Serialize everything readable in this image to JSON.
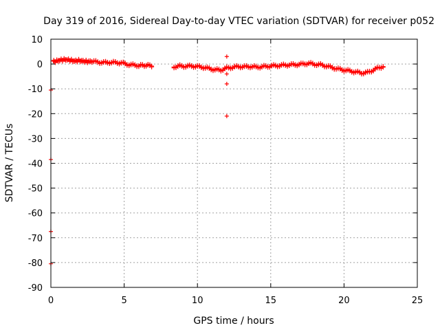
{
  "chart_data": {
    "type": "scatter",
    "title": "Day 319 of 2016, Sidereal Day-to-day VTEC variation (SDTVAR) for receiver p052",
    "xlabel": "GPS time / hours",
    "ylabel": "SDTVAR / TECUs",
    "xlim": [
      0,
      25
    ],
    "ylim": [
      -90,
      10
    ],
    "xticks": [
      0,
      5,
      10,
      15,
      20,
      25
    ],
    "yticks": [
      10,
      0,
      -10,
      -20,
      -30,
      -40,
      -50,
      -60,
      -70,
      -80,
      -90
    ],
    "grid": true,
    "marker": "+",
    "series": [
      {
        "name": "SDTVAR",
        "color": "#ff0000",
        "main_trace": [
          [
            0.2,
            0.8
          ],
          [
            0.5,
            1.2
          ],
          [
            0.8,
            1.5
          ],
          [
            1.0,
            1.6
          ],
          [
            1.3,
            1.4
          ],
          [
            1.6,
            1.0
          ],
          [
            1.9,
            1.2
          ],
          [
            2.2,
            1.0
          ],
          [
            2.5,
            0.8
          ],
          [
            2.8,
            0.9
          ],
          [
            3.2,
            0.6
          ],
          [
            3.6,
            0.4
          ],
          [
            4.0,
            0.5
          ],
          [
            4.4,
            0.4
          ],
          [
            4.8,
            0.3
          ],
          [
            5.2,
            -0.3
          ],
          [
            5.6,
            -0.6
          ],
          [
            6.0,
            -0.8
          ],
          [
            6.5,
            -0.7
          ],
          [
            7.0,
            -0.9
          ],
          [
            7.6,
            -0.8
          ],
          [
            8.4,
            -1.3
          ],
          [
            8.8,
            -1.0
          ],
          [
            9.2,
            -1.1
          ],
          [
            9.6,
            -1.0
          ],
          [
            10.0,
            -1.2
          ],
          [
            10.4,
            -1.5
          ],
          [
            10.8,
            -2.0
          ],
          [
            11.2,
            -2.5
          ],
          [
            11.6,
            -2.6
          ],
          [
            12.0,
            -1.8
          ],
          [
            12.4,
            -1.5
          ],
          [
            12.8,
            -1.2
          ],
          [
            13.2,
            -1.3
          ],
          [
            13.6,
            -1.2
          ],
          [
            14.0,
            -1.4
          ],
          [
            14.4,
            -1.3
          ],
          [
            14.8,
            -1.1
          ],
          [
            15.2,
            -0.9
          ],
          [
            15.6,
            -0.8
          ],
          [
            16.0,
            -0.6
          ],
          [
            16.4,
            -0.5
          ],
          [
            16.8,
            -0.4
          ],
          [
            17.2,
            -0.2
          ],
          [
            17.6,
            0.1
          ],
          [
            18.0,
            -0.3
          ],
          [
            18.4,
            -0.5
          ],
          [
            18.8,
            -1.0
          ],
          [
            19.2,
            -1.6
          ],
          [
            19.6,
            -2.2
          ],
          [
            20.0,
            -2.6
          ],
          [
            20.4,
            -3.0
          ],
          [
            20.8,
            -3.4
          ],
          [
            21.2,
            -3.8
          ],
          [
            21.6,
            -3.6
          ],
          [
            22.0,
            -2.6
          ],
          [
            22.4,
            -1.6
          ],
          [
            22.8,
            -1.0
          ]
        ],
        "points": [
          [
            0.0,
            -10.5
          ],
          [
            0.0,
            -38.5
          ],
          [
            0.0,
            -67.5
          ],
          [
            0.0,
            -80.5
          ],
          [
            12.0,
            3.0
          ],
          [
            12.0,
            -4.0
          ],
          [
            12.0,
            -8.0
          ],
          [
            12.0,
            -21.0
          ]
        ]
      }
    ]
  }
}
